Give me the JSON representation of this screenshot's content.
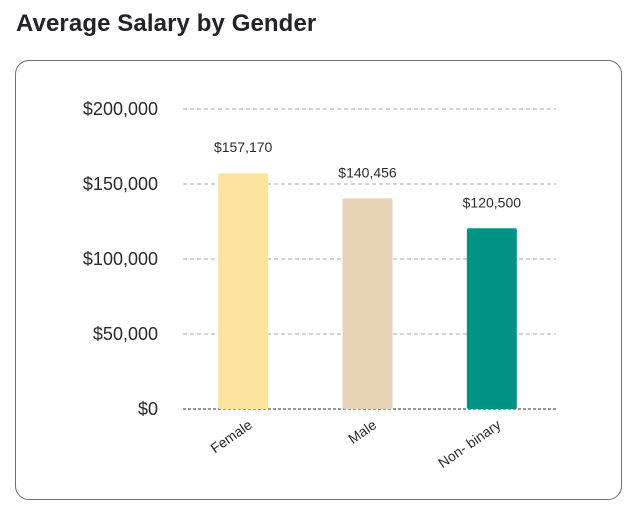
{
  "page": {
    "title": "Average Salary by Gender"
  },
  "chart_data": {
    "type": "bar",
    "title": "Average Salary by Gender",
    "xlabel": "",
    "ylabel": "",
    "categories": [
      "Female",
      "Male",
      "Non- binary"
    ],
    "values": [
      157170,
      140456,
      120500
    ],
    "data_labels": [
      "$157,170",
      "$140,456",
      "$120,500"
    ],
    "colors": [
      "#fde49e",
      "#e5d3b3",
      "#009384"
    ],
    "ylim": [
      0,
      200000
    ],
    "yticks": [
      0,
      50000,
      100000,
      150000,
      200000
    ],
    "ytick_labels": [
      "$0",
      "$50,000",
      "$100,000",
      "$150,000",
      "$200,000"
    ],
    "grid": true,
    "legend": "none"
  }
}
